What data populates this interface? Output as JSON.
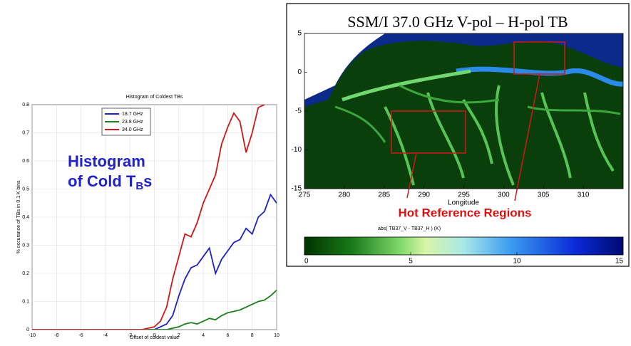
{
  "chart_data": [
    {
      "type": "line",
      "title": "Histogram of Coldest TBs",
      "xlabel": "Offset of coldest value",
      "ylabel": "% occurance of TBs in 0.1 K bins",
      "annotation": {
        "line1": "Histogram",
        "line2": "of Cold T",
        "sub": "B",
        "tail": "s"
      },
      "x": [
        -10,
        -9.5,
        -9,
        -8.5,
        -8,
        -7.5,
        -7,
        -6.5,
        -6,
        -5.5,
        -5,
        -4.5,
        -4,
        -3.5,
        -3,
        -2.5,
        -2,
        -1.5,
        -1,
        -0.5,
        0,
        0.5,
        1,
        1.5,
        2,
        2.5,
        3,
        3.5,
        4,
        4.5,
        5,
        5.5,
        6,
        6.5,
        7,
        7.5,
        8,
        8.5,
        9,
        9.5,
        10
      ],
      "series": [
        {
          "name": "18.7 GHz",
          "color": "#1f1fc8",
          "values": [
            0,
            0,
            0,
            0,
            0,
            0,
            0,
            0,
            0,
            0,
            0,
            0,
            0,
            0,
            0,
            0,
            0,
            0,
            0,
            0,
            0,
            0.01,
            0.02,
            0.05,
            0.12,
            0.18,
            0.22,
            0.23,
            0.26,
            0.29,
            0.2,
            0.25,
            0.28,
            0.31,
            0.32,
            0.36,
            0.34,
            0.4,
            0.42,
            0.48,
            0.45
          ]
        },
        {
          "name": "23.8 GHz",
          "color": "#1a7f1a",
          "values": [
            0,
            0,
            0,
            0,
            0,
            0,
            0,
            0,
            0,
            0,
            0,
            0,
            0,
            0,
            0,
            0,
            0,
            0,
            0,
            0,
            0,
            0,
            0,
            0.005,
            0.01,
            0.02,
            0.025,
            0.02,
            0.03,
            0.04,
            0.035,
            0.05,
            0.06,
            0.065,
            0.07,
            0.08,
            0.09,
            0.1,
            0.105,
            0.12,
            0.14
          ]
        },
        {
          "name": "34.0 GHz",
          "color": "#d01818",
          "values": [
            0,
            0,
            0,
            0,
            0,
            0,
            0,
            0,
            0,
            0,
            0,
            0,
            0,
            0,
            0,
            0,
            0,
            0,
            0,
            0.005,
            0.01,
            0.03,
            0.08,
            0.18,
            0.26,
            0.34,
            0.33,
            0.38,
            0.45,
            0.5,
            0.55,
            0.66,
            0.72,
            0.77,
            0.74,
            0.63,
            0.7,
            0.79,
            0.8,
            null,
            null
          ]
        }
      ],
      "xlim": [
        -10,
        10
      ],
      "xticks": [
        -10,
        -8,
        -6,
        -4,
        -2,
        0,
        2,
        4,
        6,
        8,
        10
      ],
      "ylim": [
        0,
        0.8
      ],
      "yticks": [
        0,
        0.1,
        0.2,
        0.3,
        0.4,
        0.5,
        0.6,
        0.7,
        0.8
      ],
      "grid": true,
      "legend": "top-left"
    },
    {
      "type": "map",
      "title": "SSM/I 37.0 GHz V-pol – H-pol TB",
      "xlabel": "Longitude",
      "annotation": "Hot Reference Regions",
      "xlim": [
        275,
        315
      ],
      "xticks": [
        275,
        280,
        285,
        290,
        295,
        300,
        305,
        310
      ],
      "ylim": [
        -15,
        5
      ],
      "yticks": [
        5,
        0,
        -5,
        -10,
        -15
      ],
      "colorbar": {
        "label": "abs( TB37_V - TB37_H )   (K)",
        "lim": [
          0,
          15
        ],
        "ticks": [
          0,
          5,
          10,
          15
        ]
      }
    }
  ]
}
